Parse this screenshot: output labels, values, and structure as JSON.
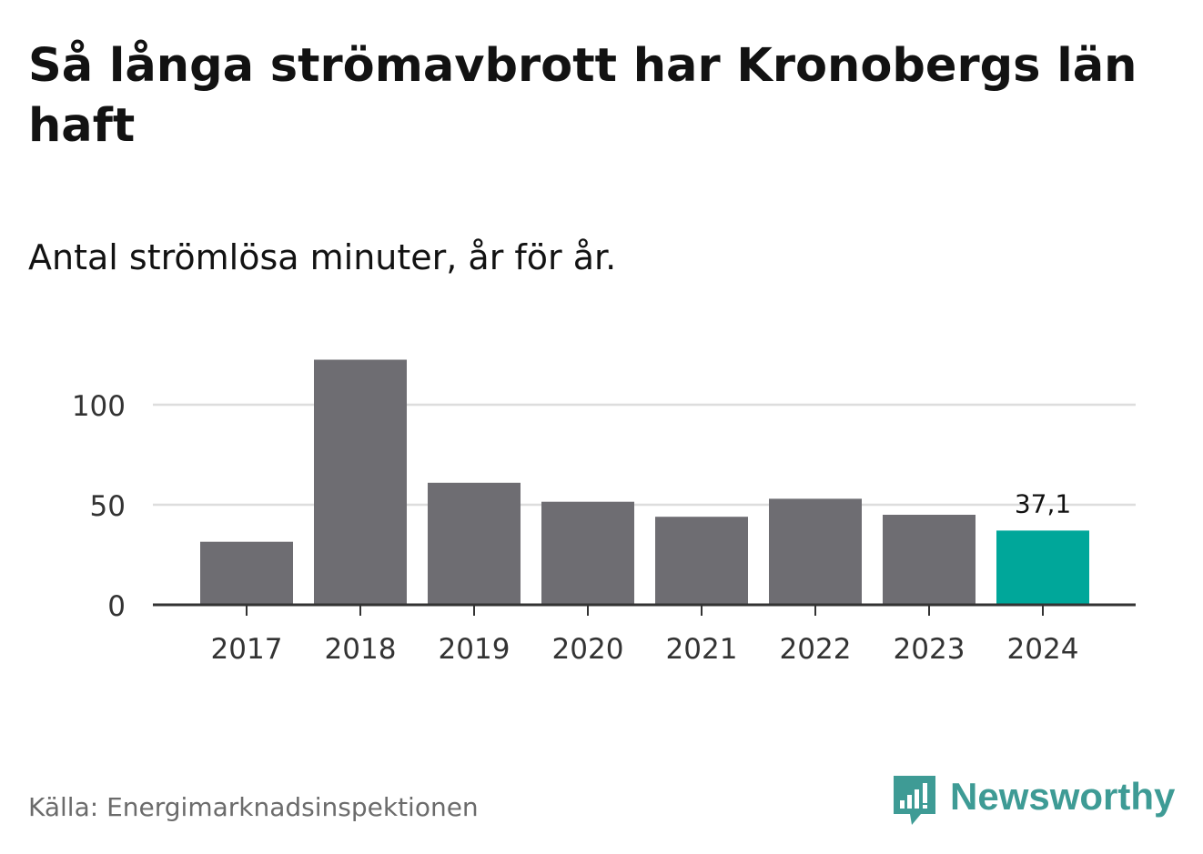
{
  "header": {
    "title": "Så långa strömavbrott har Kronobergs län haft",
    "subtitle": "Antal strömlösa minuter, år för år."
  },
  "footer": {
    "source": "Källa: Energimarknadsinspektionen",
    "brand": "Newsworthy"
  },
  "colors": {
    "bar": "#6e6d72",
    "highlight": "#00a79a",
    "grid": "#dddddd",
    "axis": "#333333",
    "brand": "#3e9b95"
  },
  "icons": {
    "brand_logo": "bar-chart-speech-bubble-icon"
  },
  "chart_data": {
    "type": "bar",
    "title": "Så långa strömavbrott har Kronobergs län haft",
    "subtitle": "Antal strömlösa minuter, år för år.",
    "xlabel": "",
    "ylabel": "",
    "categories": [
      "2017",
      "2018",
      "2019",
      "2020",
      "2021",
      "2022",
      "2023",
      "2024"
    ],
    "values": [
      31.5,
      122.5,
      61,
      51.5,
      44,
      53,
      45,
      37.1
    ],
    "highlight_index": 7,
    "data_labels": [
      {
        "index": 7,
        "text": "37,1"
      }
    ],
    "ylim": [
      0,
      130
    ],
    "yticks": [
      0,
      50,
      100
    ],
    "ytick_labels": [
      "0",
      "50",
      "100"
    ],
    "grid": true
  }
}
